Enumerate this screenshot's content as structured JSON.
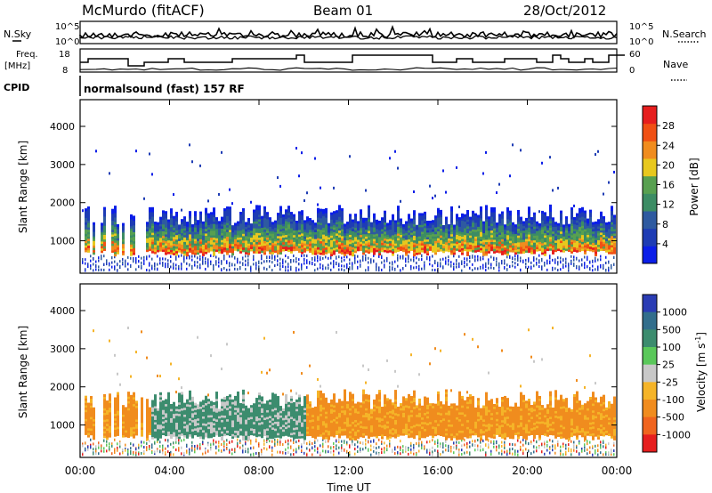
{
  "header": {
    "station": "McMurdo (fitACF)",
    "beam": "Beam 01",
    "date": "28/Oct/2012"
  },
  "top_panel": {
    "left_label": "N.Sky",
    "right_label": "N.Search",
    "left_ticks": [
      "10^5",
      "10^0"
    ],
    "right_ticks": [
      "10^5",
      "10^0"
    ]
  },
  "freq_panel": {
    "left_label_line1": "Freq.",
    "left_label_line2": "[MHz]",
    "right_label": "Nave",
    "left_ticks": [
      "18",
      "8"
    ],
    "right_ticks": [
      "60",
      "0"
    ]
  },
  "cpid": {
    "label": "CPID",
    "mode": "normalsound (fast) 157 RF"
  },
  "colors": {
    "power_scale": [
      "#0b1ee8",
      "#1e3cb4",
      "#2e5aa0",
      "#3c8c64",
      "#58a050",
      "#e8c81e",
      "#f08c1e",
      "#f05014",
      "#e61e1e"
    ],
    "velocity_scale": [
      "#2a3cb4",
      "#326e8c",
      "#3c8c6e",
      "#5ac85a",
      "#c8c8c8",
      "#f5b428",
      "#f08c1e",
      "#f0641e",
      "#e61e1e"
    ]
  },
  "chart_data": [
    {
      "type": "heatmap",
      "title": "",
      "xlabel": "",
      "ylabel": "Slant Range [km]",
      "x_ticks": [
        "00:00",
        "04:00",
        "08:00",
        "12:00",
        "16:00",
        "20:00",
        "00:00"
      ],
      "y_ticks": [
        1000,
        2000,
        3000,
        4000
      ],
      "ylim": [
        150,
        4700
      ],
      "colorbar": {
        "label": "Power [dB]",
        "ticks": [
          4,
          8,
          12,
          16,
          20,
          24,
          28
        ],
        "range": [
          0,
          32
        ]
      },
      "scatter_band_km": [
        600,
        1600
      ],
      "peak_power_db": 30
    },
    {
      "type": "heatmap",
      "title": "",
      "xlabel": "Time UT",
      "ylabel": "Slant Range [km]",
      "x_ticks": [
        "00:00",
        "04:00",
        "08:00",
        "12:00",
        "16:00",
        "20:00",
        "00:00"
      ],
      "y_ticks": [
        1000,
        2000,
        3000,
        4000
      ],
      "ylim": [
        150,
        4700
      ],
      "colorbar": {
        "label": "Velocity [m s",
        "label_superscript": "-1",
        "label_close": "]",
        "ticks": [
          1000,
          500,
          100,
          25,
          -25,
          -100,
          -500,
          -1000
        ]
      },
      "scatter_band_km": [
        600,
        1600
      ]
    }
  ]
}
